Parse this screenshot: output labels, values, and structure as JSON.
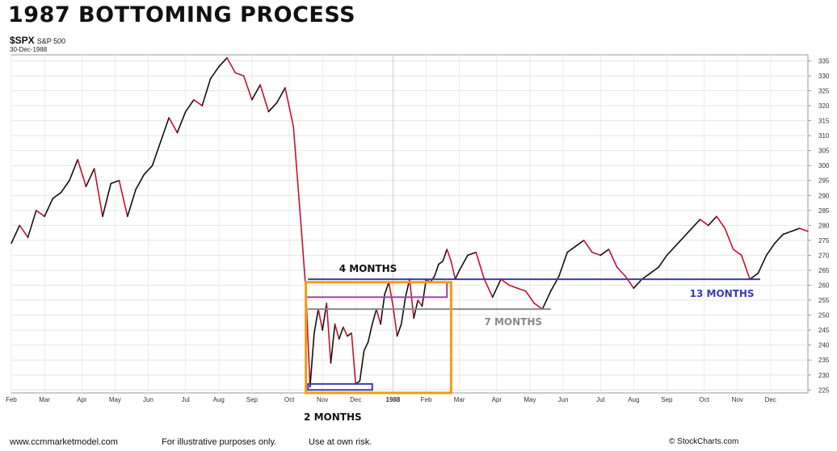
{
  "header": {
    "title": "1987 BOTTOMING PROCESS",
    "symbol": "$SPX",
    "symbol_name": "S&P 500",
    "date": "30-Dec-1988"
  },
  "footer": {
    "url": "www.ccmmarketmodel.com",
    "note": "For illustrative purposes only.",
    "risk": "Use at own risk.",
    "credit": "© StockCharts.com"
  },
  "colors": {
    "up": "#111111",
    "down": "#c8102e",
    "orange_box": "#f39c12",
    "blue_line": "#3a3ab8",
    "purple_line": "#a0449a",
    "gray_line": "#8a8a8a",
    "label_blue": "#3a3ab8",
    "label_gray": "#8a8a8a"
  },
  "chart_data": {
    "type": "line",
    "title": "1987 BOTTOMING PROCESS",
    "series": [
      {
        "name": "$SPX",
        "x": [
          1987.08,
          1987.1,
          1987.12,
          1987.14,
          1987.16,
          1987.18,
          1987.2,
          1987.22,
          1987.24,
          1987.26,
          1987.28,
          1987.3,
          1987.32,
          1987.34,
          1987.36,
          1987.38,
          1987.4,
          1987.42,
          1987.44,
          1987.46,
          1987.48,
          1987.5,
          1987.52,
          1987.54,
          1987.56,
          1987.58,
          1987.6,
          1987.62,
          1987.64,
          1987.66,
          1987.68,
          1987.7,
          1987.72,
          1987.74,
          1987.76,
          1987.78,
          1987.79,
          1987.8,
          1987.81,
          1987.82,
          1987.83,
          1987.84,
          1987.85,
          1987.86,
          1987.87,
          1987.88,
          1987.89,
          1987.9,
          1987.91,
          1987.92,
          1987.93,
          1987.94,
          1987.95,
          1987.96,
          1987.97,
          1987.98,
          1987.99,
          1988.0,
          1988.01,
          1988.02,
          1988.03,
          1988.04,
          1988.05,
          1988.06,
          1988.07,
          1988.08,
          1988.09,
          1988.1,
          1988.11,
          1988.12,
          1988.13,
          1988.14,
          1988.15,
          1988.16,
          1988.18,
          1988.2,
          1988.22,
          1988.24,
          1988.26,
          1988.28,
          1988.3,
          1988.32,
          1988.34,
          1988.36,
          1988.38,
          1988.4,
          1988.42,
          1988.44,
          1988.46,
          1988.48,
          1988.5,
          1988.52,
          1988.54,
          1988.56,
          1988.58,
          1988.6,
          1988.62,
          1988.64,
          1988.66,
          1988.68,
          1988.7,
          1988.72,
          1988.74,
          1988.76,
          1988.78,
          1988.8,
          1988.82,
          1988.84,
          1988.86,
          1988.88,
          1988.9,
          1988.92,
          1988.94,
          1988.96,
          1988.98,
          1989.0
        ],
        "values": [
          274,
          280,
          276,
          285,
          283,
          289,
          291,
          295,
          302,
          293,
          299,
          283,
          294,
          295,
          283,
          292,
          297,
          300,
          308,
          316,
          311,
          318,
          322,
          320,
          329,
          333,
          336,
          331,
          330,
          322,
          327,
          318,
          321,
          326,
          313,
          277,
          258,
          226,
          244,
          252,
          245,
          254,
          234,
          247,
          242,
          246,
          243,
          244,
          227,
          228,
          238,
          241,
          247,
          252,
          247,
          257,
          261,
          253,
          243,
          247,
          256,
          262,
          249,
          255,
          253,
          262,
          261,
          263,
          267,
          268,
          272,
          268,
          262,
          265,
          270,
          271,
          262,
          256,
          262,
          260,
          259,
          258,
          254,
          252,
          258,
          263,
          271,
          273,
          275,
          271,
          270,
          272,
          266,
          263,
          259,
          262,
          264,
          266,
          270,
          273,
          276,
          279,
          282,
          280,
          283,
          279,
          272,
          270,
          262,
          264,
          270,
          274,
          277,
          278,
          279,
          278
        ]
      }
    ],
    "x_tick_labels": [
      "Feb",
      "Mar",
      "Apr",
      "May",
      "Jun",
      "Jul",
      "Aug",
      "Sep",
      "Oct",
      "Nov",
      "Dec",
      "1988",
      "Feb",
      "Mar",
      "Apr",
      "May",
      "Jun",
      "Jul",
      "Aug",
      "Sep",
      "Oct",
      "Nov",
      "Dec"
    ],
    "x_tick_values": [
      1987.08,
      1987.16,
      1987.25,
      1987.33,
      1987.41,
      1987.5,
      1987.58,
      1987.66,
      1987.75,
      1987.83,
      1987.91,
      1988.0,
      1988.08,
      1988.16,
      1988.25,
      1988.33,
      1988.41,
      1988.5,
      1988.58,
      1988.66,
      1988.75,
      1988.83,
      1988.91
    ],
    "y_ticks": [
      225,
      230,
      235,
      240,
      245,
      250,
      255,
      260,
      265,
      270,
      275,
      280,
      285,
      290,
      295,
      300,
      305,
      310,
      315,
      320,
      325,
      330,
      335
    ],
    "xlim": [
      1987.08,
      1989.0
    ],
    "ylim": [
      224,
      337
    ],
    "grid": true,
    "y_axis_side": "right",
    "annotations": [
      {
        "label": "4 MONTHS",
        "type": "hline",
        "y": 262,
        "x0": 1987.795,
        "x1": 1988.13,
        "color": "blue_line"
      },
      {
        "label": "13 MONTHS",
        "type": "hline",
        "y": 262,
        "x0": 1988.13,
        "x1": 1988.885,
        "color": "blue_line"
      },
      {
        "label": "7 MONTHS",
        "type": "hline",
        "y": 252,
        "x0": 1987.795,
        "x1": 1988.38,
        "color": "gray_line"
      },
      {
        "label": "",
        "type": "box",
        "x0": 1987.79,
        "x1": 1988.13,
        "y0": 256,
        "y1": 261,
        "color": "purple_line"
      },
      {
        "label": "2 MONTHS",
        "type": "box",
        "x0": 1987.795,
        "x1": 1987.95,
        "y0": 225,
        "y1": 227,
        "color": "blue_line"
      },
      {
        "label": "",
        "type": "box",
        "x0": 1987.79,
        "x1": 1988.14,
        "y0": 224,
        "y1": 261,
        "color": "orange_box"
      }
    ]
  }
}
